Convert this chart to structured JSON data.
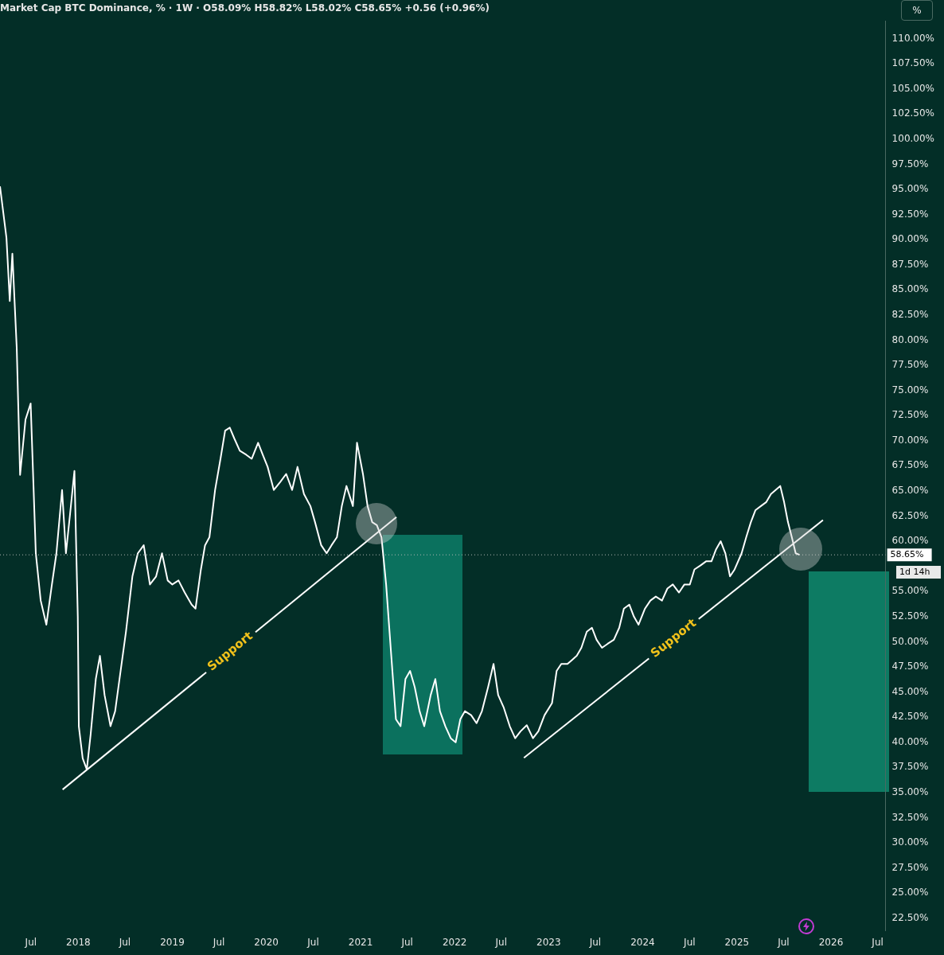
{
  "chart_data": {
    "type": "line",
    "title": "Market Cap BTC Dominance, % · 1W · O58.09% H58.82% L58.02% C58.65% +0.56 (+0.96%)",
    "xlim": [
      "2017-03-03",
      "2026-08-01"
    ],
    "xticks": [
      {
        "value": "2017-07-01",
        "label": "Jul"
      },
      {
        "value": "2018-01-01",
        "label": "2018"
      },
      {
        "value": "2018-07-01",
        "label": "Jul"
      },
      {
        "value": "2019-01-01",
        "label": "2019"
      },
      {
        "value": "2019-07-01",
        "label": "Jul"
      },
      {
        "value": "2020-01-01",
        "label": "2020"
      },
      {
        "value": "2020-07-01",
        "label": "Jul"
      },
      {
        "value": "2021-01-01",
        "label": "2021"
      },
      {
        "value": "2021-07-01",
        "label": "Jul"
      },
      {
        "value": "2022-01-01",
        "label": "2022"
      },
      {
        "value": "2022-07-01",
        "label": "Jul"
      },
      {
        "value": "2023-01-01",
        "label": "2023"
      },
      {
        "value": "2023-07-01",
        "label": "Jul"
      },
      {
        "value": "2024-01-01",
        "label": "2024"
      },
      {
        "value": "2024-07-01",
        "label": "Jul"
      },
      {
        "value": "2025-01-01",
        "label": "2025"
      },
      {
        "value": "2025-07-01",
        "label": "Jul"
      },
      {
        "value": "2026-01-01",
        "label": "2026"
      },
      {
        "value": "2026-07-01",
        "label": "Jul"
      }
    ],
    "ylim": [
      21.25,
      111.75
    ],
    "yticks": [
      {
        "value": 22.5,
        "label": "22.50%"
      },
      {
        "value": 25,
        "label": "25.00%"
      },
      {
        "value": 27.5,
        "label": "27.50%"
      },
      {
        "value": 30,
        "label": "30.00%"
      },
      {
        "value": 32.5,
        "label": "32.50%"
      },
      {
        "value": 35,
        "label": "35.00%"
      },
      {
        "value": 37.5,
        "label": "37.50%"
      },
      {
        "value": 40,
        "label": "40.00%"
      },
      {
        "value": 42.5,
        "label": "42.50%"
      },
      {
        "value": 45,
        "label": "45.00%"
      },
      {
        "value": 47.5,
        "label": "47.50%"
      },
      {
        "value": 50,
        "label": "50.00%"
      },
      {
        "value": 52.5,
        "label": "52.50%"
      },
      {
        "value": 55,
        "label": "55.00%"
      },
      {
        "value": 60,
        "label": "60.00%"
      },
      {
        "value": 62.5,
        "label": "62.50%"
      },
      {
        "value": 65,
        "label": "65.00%"
      },
      {
        "value": 67.5,
        "label": "67.50%"
      },
      {
        "value": 70,
        "label": "70.00%"
      },
      {
        "value": 72.5,
        "label": "72.50%"
      },
      {
        "value": 75,
        "label": "75.00%"
      },
      {
        "value": 77.5,
        "label": "77.50%"
      },
      {
        "value": 80,
        "label": "80.00%"
      },
      {
        "value": 82.5,
        "label": "82.50%"
      },
      {
        "value": 85,
        "label": "85.00%"
      },
      {
        "value": 87.5,
        "label": "87.50%"
      },
      {
        "value": 90,
        "label": "90.00%"
      },
      {
        "value": 92.5,
        "label": "92.50%"
      },
      {
        "value": 95,
        "label": "95.00%"
      },
      {
        "value": 97.5,
        "label": "97.50%"
      },
      {
        "value": 100,
        "label": "100.00%"
      },
      {
        "value": 102.5,
        "label": "102.50%"
      },
      {
        "value": 105,
        "label": "105.00%"
      },
      {
        "value": 107.5,
        "label": "107.50%"
      },
      {
        "value": 110,
        "label": "110.00%"
      }
    ],
    "grid": false,
    "legend": false,
    "marker": "none",
    "line_style": "solid",
    "series": [
      {
        "color": "#ffffff",
        "x": [
          "2017-03-03",
          "2017-03-28",
          "2017-04-10",
          "2017-04-20",
          "2017-05-07",
          "2017-05-20",
          "2017-06-10",
          "2017-06-30",
          "2017-07-20",
          "2017-08-08",
          "2017-08-30",
          "2017-09-20",
          "2017-10-08",
          "2017-10-30",
          "2017-11-14",
          "2017-11-30",
          "2017-12-17",
          "2017-12-30",
          "2018-01-03",
          "2018-01-18",
          "2018-02-03",
          "2018-02-18",
          "2018-03-10",
          "2018-03-26",
          "2018-04-13",
          "2018-05-06",
          "2018-05-24",
          "2018-06-10",
          "2018-07-05",
          "2018-07-30",
          "2018-08-20",
          "2018-09-12",
          "2018-10-06",
          "2018-10-30",
          "2018-11-22",
          "2018-12-14",
          "2019-01-01",
          "2019-01-25",
          "2019-02-18",
          "2019-03-17",
          "2019-04-01",
          "2019-04-22",
          "2019-05-08",
          "2019-05-25",
          "2019-06-16",
          "2019-07-07",
          "2019-07-25",
          "2019-08-12",
          "2019-08-30",
          "2019-09-20",
          "2019-10-15",
          "2019-11-05",
          "2019-11-30",
          "2019-12-18",
          "2020-01-06",
          "2020-01-30",
          "2020-02-24",
          "2020-03-18",
          "2020-04-10",
          "2020-05-01",
          "2020-05-26",
          "2020-06-20",
          "2020-07-08",
          "2020-08-01",
          "2020-08-22",
          "2020-09-10",
          "2020-10-01",
          "2020-10-20",
          "2020-11-07",
          "2020-12-02",
          "2020-12-18",
          "2021-01-10",
          "2021-01-28",
          "2021-02-15",
          "2021-03-05",
          "2021-03-23",
          "2021-04-10",
          "2021-04-30",
          "2021-05-18",
          "2021-06-05",
          "2021-06-24",
          "2021-07-12",
          "2021-07-30",
          "2021-08-18",
          "2021-09-05",
          "2021-09-30",
          "2021-10-18",
          "2021-11-05",
          "2021-11-26",
          "2021-12-17",
          "2022-01-05",
          "2022-01-23",
          "2022-02-10",
          "2022-03-06",
          "2022-03-27",
          "2022-04-17",
          "2022-05-11",
          "2022-06-01",
          "2022-06-19",
          "2022-07-10",
          "2022-08-03",
          "2022-08-24",
          "2022-09-14",
          "2022-10-08",
          "2022-11-01",
          "2022-11-22",
          "2022-12-16",
          "2023-01-14",
          "2023-02-01",
          "2023-02-19",
          "2023-03-15",
          "2023-04-02",
          "2023-04-20",
          "2023-05-08",
          "2023-05-29",
          "2023-06-18",
          "2023-07-06",
          "2023-07-27",
          "2023-08-18",
          "2023-09-11",
          "2023-10-02",
          "2023-10-20",
          "2023-11-10",
          "2023-11-28",
          "2023-12-16",
          "2024-01-10",
          "2024-01-31",
          "2024-02-21",
          "2024-03-16",
          "2024-04-06",
          "2024-04-27",
          "2024-05-21",
          "2024-06-11",
          "2024-07-02",
          "2024-07-20",
          "2024-08-13",
          "2024-09-03",
          "2024-09-24",
          "2024-10-12",
          "2024-10-30",
          "2024-11-17",
          "2024-12-05",
          "2024-12-23",
          "2025-01-19",
          "2025-02-06",
          "2025-02-24",
          "2025-03-14",
          "2025-04-04",
          "2025-04-25",
          "2025-05-13",
          "2025-05-31",
          "2025-06-18",
          "2025-07-03",
          "2025-07-18",
          "2025-08-02",
          "2025-08-17",
          "2025-09-01"
        ],
        "values": [
          95.3,
          90.2,
          83.9,
          88.6,
          79.2,
          66.6,
          72.1,
          73.7,
          58.8,
          54.1,
          51.7,
          55.6,
          58.8,
          65.1,
          58.8,
          62.7,
          67.0,
          52.5,
          41.6,
          38.4,
          37.3,
          40.8,
          46.3,
          48.6,
          44.7,
          41.6,
          43.1,
          46.3,
          51.0,
          56.5,
          58.8,
          59.6,
          55.7,
          56.5,
          58.8,
          56.1,
          55.7,
          56.1,
          54.9,
          53.7,
          53.3,
          57.2,
          59.6,
          60.4,
          65.1,
          68.2,
          71.0,
          71.3,
          70.2,
          69.0,
          68.6,
          68.2,
          69.8,
          68.6,
          67.4,
          65.1,
          65.9,
          66.7,
          65.1,
          67.4,
          64.7,
          63.5,
          61.9,
          59.6,
          58.8,
          59.6,
          60.4,
          63.5,
          65.5,
          63.5,
          69.8,
          66.7,
          63.5,
          61.9,
          61.6,
          60.4,
          55.7,
          48.6,
          42.3,
          41.6,
          46.3,
          47.1,
          45.5,
          43.1,
          41.6,
          44.7,
          46.3,
          43.1,
          41.6,
          40.4,
          40.0,
          42.3,
          43.1,
          42.7,
          41.9,
          43.1,
          45.5,
          47.8,
          44.7,
          43.5,
          41.6,
          40.4,
          41.1,
          41.7,
          40.4,
          41.1,
          42.7,
          43.9,
          47.1,
          47.8,
          47.8,
          48.2,
          48.6,
          49.4,
          51.0,
          51.4,
          50.2,
          49.4,
          49.8,
          50.2,
          51.4,
          53.3,
          53.7,
          52.5,
          51.7,
          53.3,
          54.1,
          54.5,
          54.1,
          55.3,
          55.7,
          54.9,
          55.7,
          55.7,
          57.2,
          57.6,
          58.0,
          58.0,
          59.2,
          60.0,
          58.8,
          56.5,
          57.2,
          58.8,
          60.4,
          61.9,
          63.1,
          63.5,
          63.9,
          64.7,
          65.1,
          65.5,
          63.9,
          61.9,
          60.4,
          58.8,
          58.65
        ]
      },
      {
        "type": "line",
        "color": "#ffffff",
        "x": [
          "2017-11-01",
          "2021-05-20"
        ],
        "values": [
          35.3,
          62.4
        ]
      },
      {
        "type": "line",
        "color": "#ffffff",
        "x": [
          "2022-09-27",
          "2025-12-01"
        ],
        "values": [
          38.45,
          62.1
        ]
      }
    ],
    "ref_lines": [
      {
        "axis": "y",
        "value": 58.65,
        "label": "58.65%",
        "color": "#b0b8b4",
        "line_style": "dotted"
      }
    ],
    "annotations": [
      {
        "text": "Support",
        "x": "2019-08-15",
        "y": 49.0
      },
      {
        "text": "Support",
        "x": "2024-05-01",
        "y": 50.3
      },
      "1d 14h",
      "%"
    ]
  }
}
